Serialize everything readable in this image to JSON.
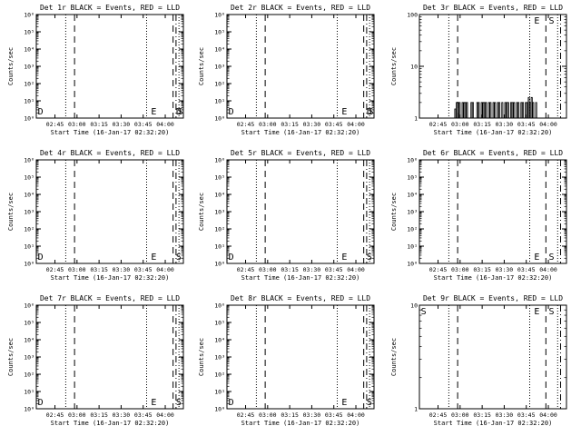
{
  "figure": {
    "background": "#ffffff",
    "ink": "#000000",
    "events_color": "#000000",
    "lld_color": "#ff0000"
  },
  "chart_data": [
    {
      "type": "line",
      "title": "Det 1r BLACK = Events, RED = LLD",
      "ylabel": "Counts/sec",
      "xlabel_line1": "Start Time (16-Jan-17 02:32:20)",
      "xlabel_line2": "",
      "yscale": "log",
      "ylim": [
        1,
        1000000
      ],
      "y_ticks": [
        "10⁰",
        "10¹",
        "10²",
        "10³",
        "10⁴",
        "10⁵",
        "10⁶"
      ],
      "x_ticks": [
        "02:45",
        "03:00",
        "03:15",
        "03:30",
        "03:45",
        "04:00"
      ],
      "xlim_minutes": [
        0,
        100
      ],
      "series": [],
      "markers": [
        {
          "style": "dotted",
          "x": 20
        },
        {
          "style": "dashed",
          "x": 26
        },
        {
          "style": "dotted",
          "x": 75
        },
        {
          "style": "dashed",
          "x": 93
        },
        {
          "style": "dashdot",
          "x": 95
        },
        {
          "style": "dotted",
          "x": 97
        }
      ],
      "flags": [
        {
          "text": "D",
          "x": 1
        },
        {
          "text": "E",
          "x": 78
        },
        {
          "text": "D",
          "x": 95
        },
        {
          "text": "S",
          "x": 96
        }
      ]
    },
    {
      "type": "line",
      "title": "Det 2r BLACK = Events, RED = LLD",
      "ylabel": "Counts/sec",
      "xlabel_line1": "02:45",
      "xlabel_line2": "Start Time (16-Jan-17 02:32:20)",
      "yscale": "log",
      "ylim": [
        1,
        1000000
      ],
      "y_ticks": [
        "10⁰",
        "10¹",
        "10²",
        "10³",
        "10⁴",
        "10⁵",
        "10⁶"
      ],
      "x_ticks": [
        "02:45",
        "03:00",
        "03:15",
        "03:30",
        "03:45",
        "04:00"
      ],
      "xlim_minutes": [
        0,
        100
      ],
      "series": [],
      "markers": [
        {
          "style": "dotted",
          "x": 20
        },
        {
          "style": "dashed",
          "x": 26
        },
        {
          "style": "dotted",
          "x": 75
        },
        {
          "style": "dashed",
          "x": 93
        },
        {
          "style": "dashdot",
          "x": 95
        },
        {
          "style": "dotted",
          "x": 97
        }
      ],
      "flags": [
        {
          "text": "D",
          "x": 1
        },
        {
          "text": "E",
          "x": 78
        },
        {
          "text": "D",
          "x": 95
        },
        {
          "text": "S",
          "x": 96
        }
      ]
    },
    {
      "type": "line",
      "title": "Det 3r BLACK = Events, RED = LLD",
      "ylabel": "Counts/sec",
      "xlabel_line1": "",
      "xlabel_line2": "Start Time (16-Jan-17 02:32:20)",
      "yscale": "log",
      "ylim": [
        1,
        100
      ],
      "y_ticks": [
        "1",
        "10",
        "100"
      ],
      "x_ticks": [
        "02:45",
        "03:00",
        "03:15",
        "03:30",
        "03:45",
        "04:00"
      ],
      "xlim_minutes": [
        0,
        100
      ],
      "series": [
        {
          "color": "#000000",
          "x": [
            22,
            24,
            25,
            26,
            27,
            28,
            29,
            30,
            31,
            32,
            33,
            34,
            35,
            36,
            37,
            38,
            39,
            40,
            41,
            42,
            43,
            44,
            45,
            46,
            47,
            48,
            49,
            50,
            51,
            52,
            53,
            54,
            55,
            56,
            57,
            58,
            59,
            60,
            61,
            62,
            63,
            64,
            65,
            66,
            67,
            68,
            69,
            70,
            71,
            72,
            73,
            74,
            75,
            76,
            77,
            78,
            79,
            80
          ],
          "y": [
            1,
            1.5,
            2,
            2,
            2,
            1,
            2,
            2,
            2,
            2,
            1,
            1,
            2,
            2,
            1,
            1,
            2,
            2,
            1,
            2,
            2,
            2,
            2,
            1,
            2,
            2,
            1,
            2,
            2,
            1,
            2,
            2,
            1,
            2,
            1,
            2,
            2,
            2,
            1,
            2,
            2,
            2,
            1,
            2,
            2,
            1,
            2,
            2,
            1,
            2,
            2,
            2.5,
            2,
            2.5,
            2,
            1,
            2,
            1
          ]
        }
      ],
      "markers": [
        {
          "style": "dotted",
          "x": 20
        },
        {
          "style": "dashed",
          "x": 26
        },
        {
          "style": "dotted",
          "x": 75
        },
        {
          "style": "dashed",
          "x": 86
        },
        {
          "style": "dotted",
          "x": 94
        },
        {
          "style": "dashdot",
          "x": 96
        }
      ],
      "flags": [
        {
          "text": "E",
          "x": 78
        },
        {
          "text": "S",
          "x": 88
        }
      ]
    },
    {
      "type": "line",
      "title": "Det 4r BLACK = Events, RED = LLD",
      "ylabel": "Counts/sec",
      "xlabel_line1": "",
      "xlabel_line2": "",
      "yscale": "log",
      "ylim": [
        1,
        1000000
      ],
      "y_ticks": [
        "10⁰",
        "10¹",
        "10²",
        "10³",
        "10⁴",
        "10⁵",
        "10⁶"
      ],
      "x_ticks": [
        "02:45",
        "03:00",
        "03:15",
        "03:30",
        "03:45",
        "04:00"
      ],
      "xlim_minutes": [
        0,
        100
      ],
      "series": [],
      "markers": [
        {
          "style": "dotted",
          "x": 20
        },
        {
          "style": "dashed",
          "x": 26
        },
        {
          "style": "dotted",
          "x": 75
        },
        {
          "style": "dashed",
          "x": 93
        },
        {
          "style": "dashdot",
          "x": 95
        },
        {
          "style": "dotted",
          "x": 97
        }
      ],
      "flags": [
        {
          "text": "D",
          "x": 1
        },
        {
          "text": "E",
          "x": 78
        },
        {
          "text": "S",
          "x": 95
        }
      ]
    },
    {
      "type": "line",
      "title": "Det 5r BLACK = Events, RED = LLD",
      "ylabel": "Counts/sec",
      "xlabel_line1": "",
      "xlabel_line2": "",
      "yscale": "log",
      "ylim": [
        1,
        1000000
      ],
      "y_ticks": [
        "10⁰",
        "10¹",
        "10²",
        "10³",
        "10⁴",
        "10⁵",
        "10⁶"
      ],
      "x_ticks": [
        "02:45",
        "03:00",
        "03:15",
        "03:30",
        "03:45",
        "04:00"
      ],
      "xlim_minutes": [
        0,
        100
      ],
      "series": [],
      "markers": [
        {
          "style": "dotted",
          "x": 20
        },
        {
          "style": "dashed",
          "x": 26
        },
        {
          "style": "dotted",
          "x": 75
        },
        {
          "style": "dashed",
          "x": 93
        },
        {
          "style": "dashdot",
          "x": 95
        },
        {
          "style": "dotted",
          "x": 97
        }
      ],
      "flags": [
        {
          "text": "D",
          "x": 1
        },
        {
          "text": "E",
          "x": 78
        },
        {
          "text": "S",
          "x": 95
        }
      ]
    },
    {
      "type": "line",
      "title": "Det 6r BLACK = Events, RED = LLD",
      "ylabel": "Counts/sec",
      "xlabel_line1": "",
      "xlabel_line2": "",
      "yscale": "log",
      "ylim": [
        1,
        1000000
      ],
      "y_ticks": [
        "10⁰",
        "10¹",
        "10²",
        "10³",
        "10⁴",
        "10⁵",
        "10⁶"
      ],
      "x_ticks": [
        "02:45",
        "03:00",
        "03:15",
        "03:30",
        "03:45",
        "04:00"
      ],
      "xlim_minutes": [
        0,
        100
      ],
      "series": [],
      "markers": [
        {
          "style": "dotted",
          "x": 20
        },
        {
          "style": "dashed",
          "x": 26
        },
        {
          "style": "dotted",
          "x": 75
        },
        {
          "style": "dashed",
          "x": 86
        },
        {
          "style": "dotted",
          "x": 94
        },
        {
          "style": "dashdot",
          "x": 96
        }
      ],
      "flags": [
        {
          "text": "E",
          "x": 78
        },
        {
          "text": "S",
          "x": 88
        }
      ]
    },
    {
      "type": "line",
      "title": "Det 7r BLACK = Events, RED = LLD",
      "ylabel": "Counts/sec",
      "xlabel_line1": "",
      "xlabel_line2": "",
      "yscale": "log",
      "ylim": [
        1,
        1000000
      ],
      "y_ticks": [
        "10⁰",
        "10¹",
        "10²",
        "10³",
        "10⁴",
        "10⁵",
        "10⁶"
      ],
      "x_ticks": [
        "02:45",
        "03:00",
        "03:15",
        "03:30",
        "03:45",
        "04:00"
      ],
      "xlim_minutes": [
        0,
        100
      ],
      "series": [],
      "markers": [
        {
          "style": "dotted",
          "x": 20
        },
        {
          "style": "dashed",
          "x": 26
        },
        {
          "style": "dotted",
          "x": 75
        },
        {
          "style": "dashed",
          "x": 93
        },
        {
          "style": "dashdot",
          "x": 95
        },
        {
          "style": "dotted",
          "x": 97
        }
      ],
      "flags": [
        {
          "text": "D",
          "x": 1
        },
        {
          "text": "E",
          "x": 78
        },
        {
          "text": "S",
          "x": 95
        }
      ]
    },
    {
      "type": "line",
      "title": "Det 8r BLACK = Events, RED = LLD",
      "ylabel": "Counts/sec",
      "xlabel_line1": "",
      "xlabel_line2": "",
      "yscale": "log",
      "ylim": [
        1,
        1000000
      ],
      "y_ticks": [
        "10⁰",
        "10¹",
        "10²",
        "10³",
        "10⁴",
        "10⁵",
        "10⁶"
      ],
      "x_ticks": [
        "02:45",
        "03:00",
        "03:15",
        "03:30",
        "03:45",
        "04:00"
      ],
      "xlim_minutes": [
        0,
        100
      ],
      "series": [],
      "markers": [
        {
          "style": "dotted",
          "x": 20
        },
        {
          "style": "dashed",
          "x": 26
        },
        {
          "style": "dotted",
          "x": 75
        },
        {
          "style": "dashed",
          "x": 93
        },
        {
          "style": "dashdot",
          "x": 95
        },
        {
          "style": "dotted",
          "x": 97
        }
      ],
      "flags": [
        {
          "text": "D",
          "x": 1
        },
        {
          "text": "E",
          "x": 78
        },
        {
          "text": "S",
          "x": 95
        }
      ]
    },
    {
      "type": "line",
      "title": "Det 9r BLACK = Events, RED = LLD",
      "ylabel": "Counts/sec",
      "xlabel_line1": "",
      "xlabel_line2": "",
      "yscale": "log",
      "ylim": [
        1,
        10
      ],
      "y_ticks": [
        "1",
        "10"
      ],
      "x_ticks": [
        "02:45",
        "03:00",
        "03:15",
        "03:30",
        "03:45",
        "04:00"
      ],
      "xlim_minutes": [
        0,
        100
      ],
      "series": [],
      "markers": [
        {
          "style": "dotted",
          "x": 20
        },
        {
          "style": "dashed",
          "x": 26
        },
        {
          "style": "dotted",
          "x": 75
        },
        {
          "style": "dashed",
          "x": 86
        },
        {
          "style": "dotted",
          "x": 94
        },
        {
          "style": "dashdot",
          "x": 96
        }
      ],
      "flags": [
        {
          "text": "S",
          "x": 1
        },
        {
          "text": "E",
          "x": 78
        },
        {
          "text": "S",
          "x": 88
        }
      ]
    }
  ]
}
